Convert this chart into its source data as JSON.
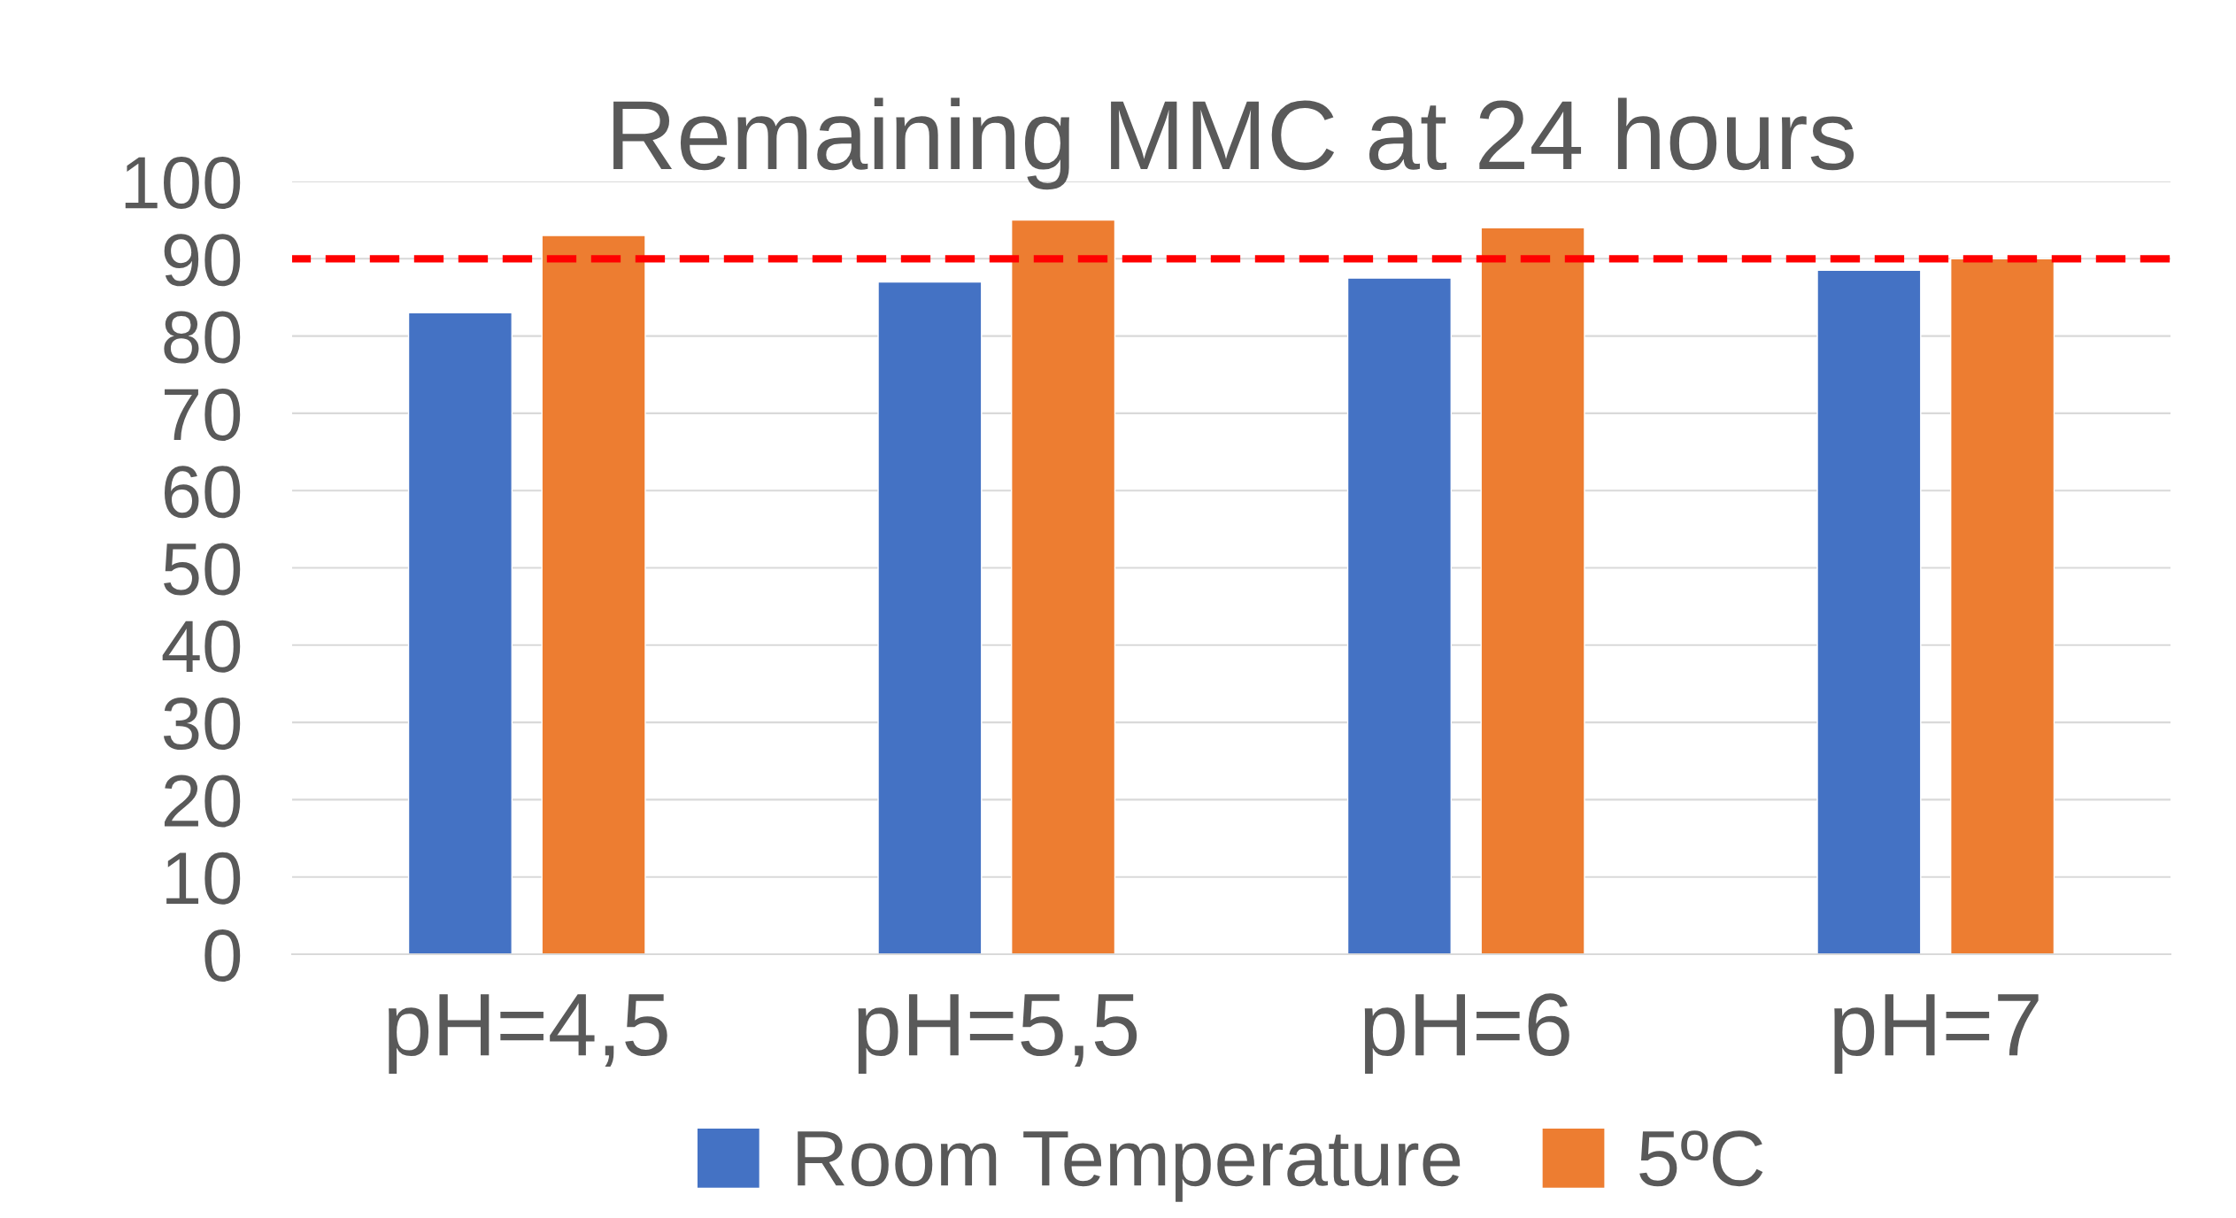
{
  "chart_data": {
    "type": "bar",
    "title": "Remaining MMC at 24 hours",
    "categories": [
      "pH=4,5",
      "pH=5,5",
      "pH=6",
      "pH=7"
    ],
    "series": [
      {
        "name": "Room Temperature",
        "color": "#4472c4",
        "values": [
          83,
          87,
          87.5,
          88.5
        ]
      },
      {
        "name": "5ºC",
        "color": "#ed7d31",
        "values": [
          93,
          95,
          94,
          90
        ]
      }
    ],
    "ylim": [
      0,
      100
    ],
    "yticks": [
      0,
      10,
      20,
      30,
      40,
      50,
      60,
      70,
      80,
      90,
      100
    ],
    "ref_lines": [
      {
        "axis": "y",
        "value": 90,
        "color": "#ff0000",
        "line_style": "dashed"
      }
    ],
    "grid": "y",
    "legend": "bottom"
  }
}
